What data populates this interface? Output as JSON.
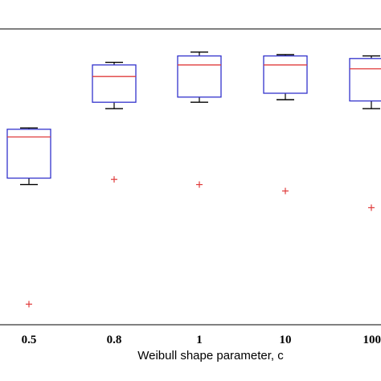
{
  "chart_data": {
    "type": "box",
    "xlabel": "Weibull shape parameter, c",
    "categories": [
      "0.5",
      "0.8",
      "1",
      "10",
      "100"
    ],
    "series": [
      {
        "category": "0.5",
        "whisker_low": 0.545,
        "q1": 0.57,
        "median": 0.73,
        "q3": 0.76,
        "whisker_high": 0.765,
        "outliers": [
          0.08
        ]
      },
      {
        "category": "0.8",
        "whisker_low": 0.84,
        "q1": 0.865,
        "median": 0.965,
        "q3": 1.01,
        "whisker_high": 1.02,
        "outliers": [
          0.565
        ]
      },
      {
        "category": "1",
        "whisker_low": 0.865,
        "q1": 0.885,
        "median": 1.01,
        "q3": 1.045,
        "whisker_high": 1.06,
        "outliers": [
          0.545
        ]
      },
      {
        "category": "10",
        "whisker_low": 0.875,
        "q1": 0.9,
        "median": 1.01,
        "q3": 1.045,
        "whisker_high": 1.05,
        "outliers": [
          0.52
        ]
      },
      {
        "category": "100",
        "whisker_low": 0.84,
        "q1": 0.87,
        "median": 0.995,
        "q3": 1.035,
        "whisker_high": 1.045,
        "outliers": [
          0.455
        ]
      }
    ],
    "ylim": [
      0,
      1.15
    ],
    "colors": {
      "box": "#3333cc",
      "median": "#e03c3c",
      "whisker": "#000000",
      "outlier": "#e03c3c",
      "frame": "#000000"
    },
    "legend": "none",
    "grid": false
  }
}
